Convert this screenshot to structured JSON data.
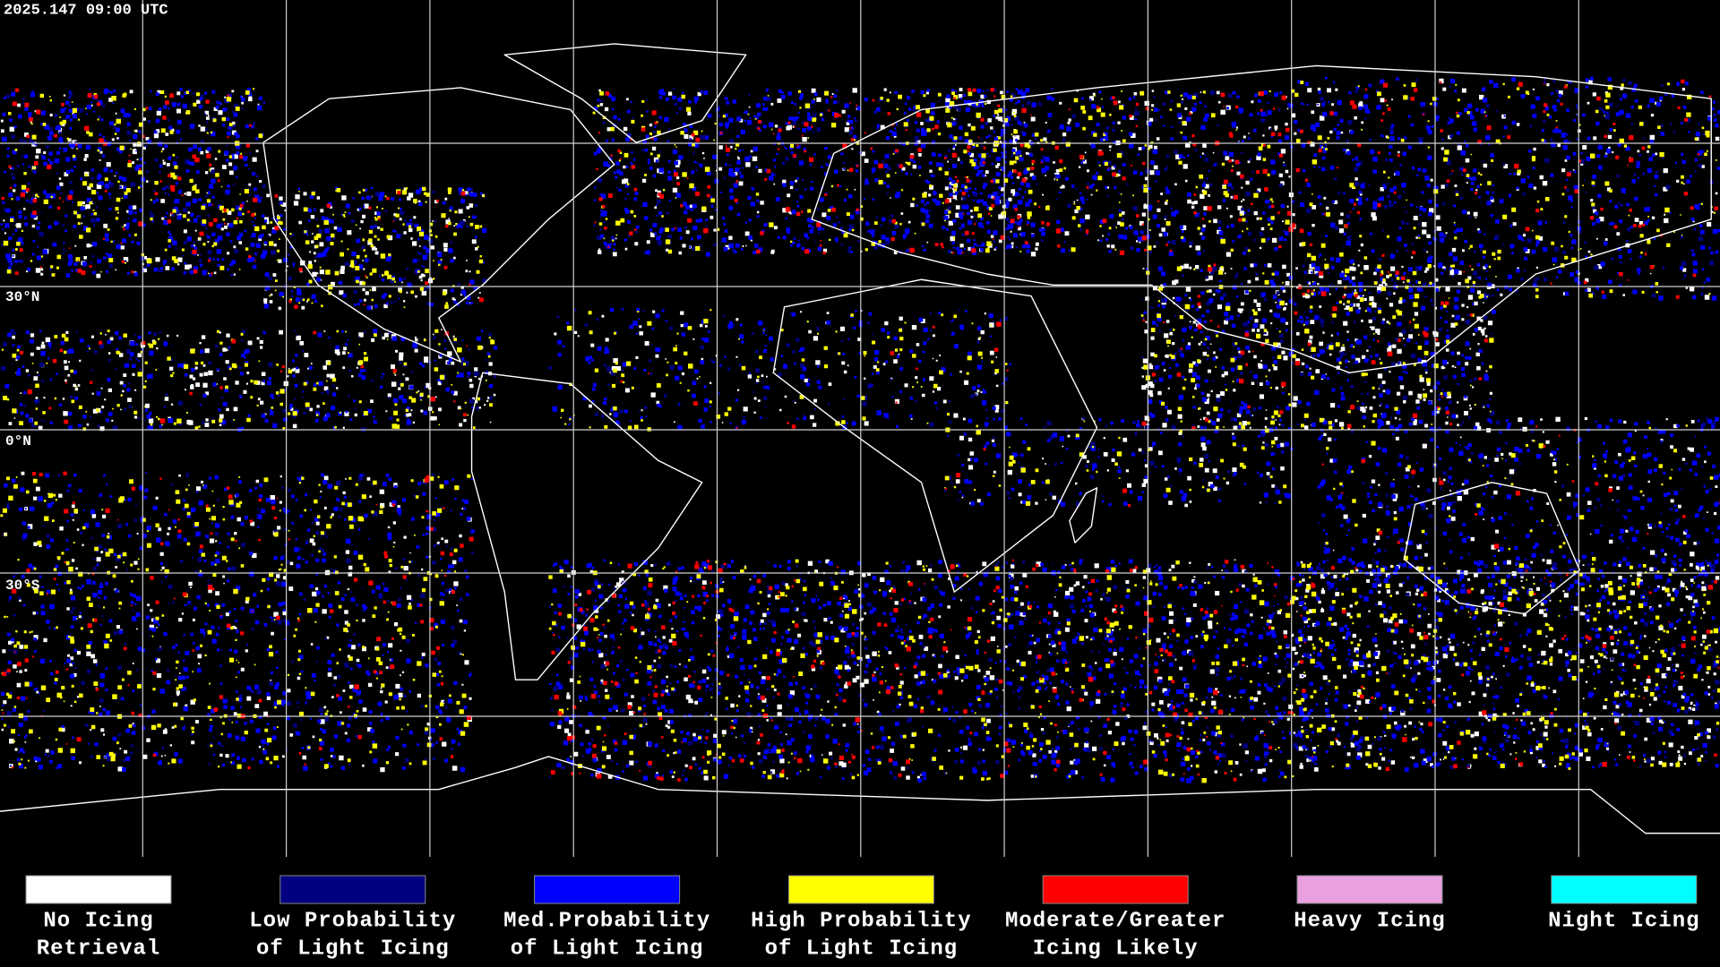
{
  "header": {
    "timestamp": "2025.147 09:00 UTC"
  },
  "map": {
    "lat_labels": [
      "30°N",
      "0°N",
      "30°S"
    ]
  },
  "legend": [
    {
      "label": [
        "No Icing",
        "Retrieval"
      ],
      "color": "#ffffff"
    },
    {
      "label": [
        "Low Probability",
        "of Light Icing"
      ],
      "color": "#000080"
    },
    {
      "label": [
        "Med.Probability",
        "of Light Icing"
      ],
      "color": "#0000ff"
    },
    {
      "label": [
        "High Probability",
        "of Light Icing"
      ],
      "color": "#ffff00"
    },
    {
      "label": [
        "Moderate/Greater",
        "Icing Likely"
      ],
      "color": "#ff0000"
    },
    {
      "label": [
        "Heavy Icing"
      ],
      "color": "#e8a0e0"
    },
    {
      "label": [
        "Night Icing"
      ],
      "color": "#00ffff"
    }
  ]
}
